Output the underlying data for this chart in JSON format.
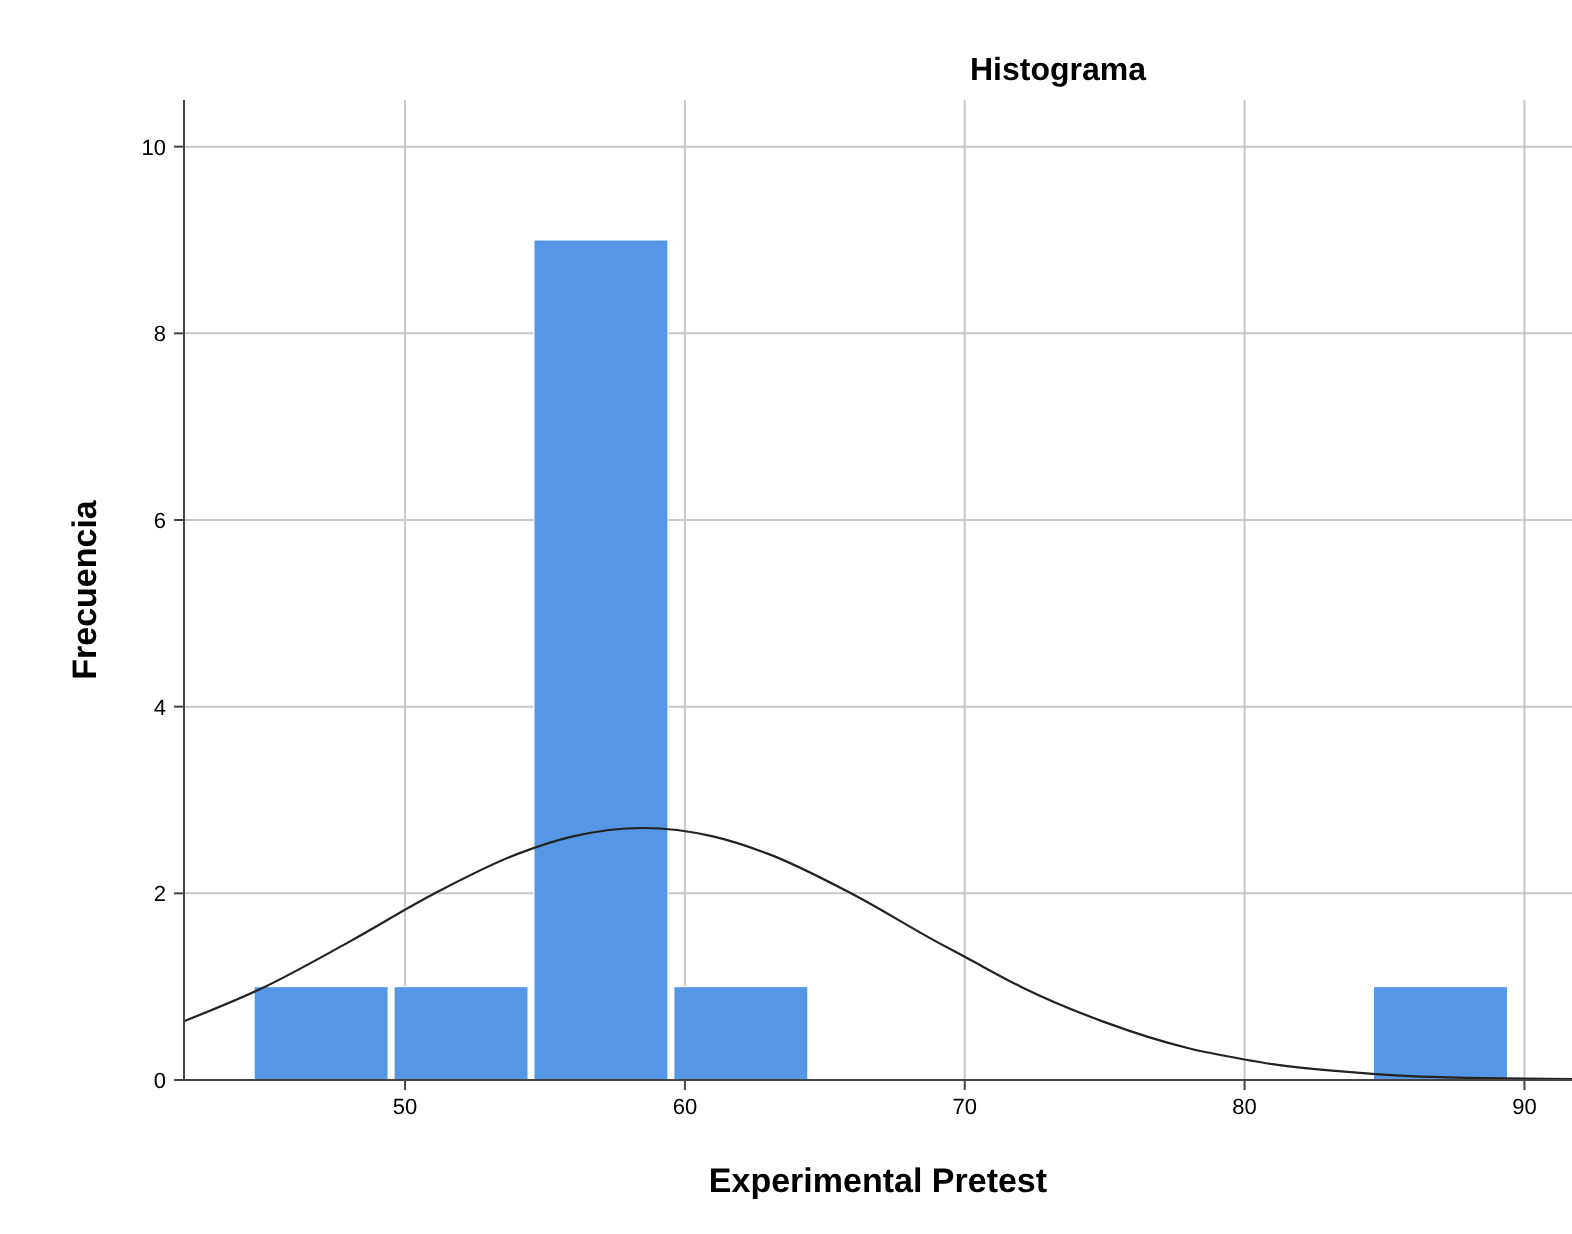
{
  "chart_data": {
    "type": "histogram",
    "title": "Histograma",
    "xlabel": "Experimental Pretest",
    "ylabel": "Frecuencia",
    "bins": [
      44.5,
      49.5,
      54.5,
      59.5,
      64.5,
      69.5,
      74.5,
      79.5,
      84.5,
      89.5
    ],
    "values": [
      1,
      1,
      9,
      1,
      0,
      0,
      0,
      0,
      1
    ],
    "color": "#5597e4",
    "series": [
      {
        "type": "line",
        "color": "#222222",
        "x": [
          42.1,
          45,
          48,
          51,
          54,
          56,
          58.5,
          61,
          63,
          66,
          69,
          70,
          72,
          75,
          78,
          80,
          81,
          84,
          87,
          91.7
        ],
        "values": [
          0.63,
          1.0,
          1.48,
          1.99,
          2.42,
          2.61,
          2.7,
          2.61,
          2.42,
          1.99,
          1.48,
          1.32,
          1.0,
          0.62,
          0.34,
          0.22,
          0.17,
          0.08,
          0.03,
          0.01
        ]
      }
    ],
    "xlim": [
      42.1,
      91.7
    ],
    "xticks": [
      50,
      60,
      70,
      80,
      90
    ],
    "ylim": [
      0,
      10.5
    ],
    "yticks": [
      0,
      2,
      4,
      6,
      8,
      10
    ],
    "grid": true,
    "line_style": "solid",
    "marker": "none"
  }
}
